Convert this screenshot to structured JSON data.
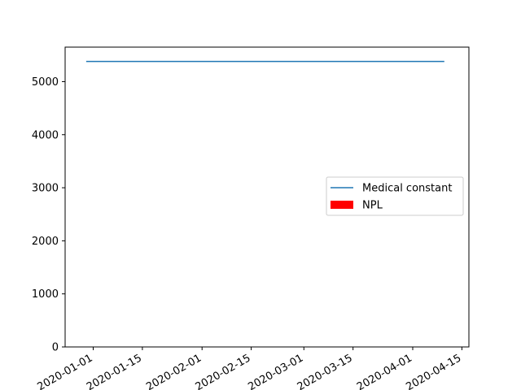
{
  "chart_data": {
    "type": "line",
    "title": "",
    "xlabel": "",
    "ylabel": "",
    "x_axis_type": "date",
    "xlim": [
      "2019-12-24",
      "2020-04-17"
    ],
    "ylim": [
      0,
      5650
    ],
    "x_ticks": [
      "2020-01-01",
      "2020-01-15",
      "2020-02-01",
      "2020-02-15",
      "2020-03-01",
      "2020-03-15",
      "2020-04-01",
      "2020-04-15"
    ],
    "y_ticks": [
      0,
      1000,
      2000,
      3000,
      4000,
      5000
    ],
    "grid": false,
    "legend_position": "center-right",
    "series": [
      {
        "name": "Medical constant",
        "kind": "line",
        "color": "#1f77b4",
        "x": [
          "2019-12-30",
          "2020-04-10"
        ],
        "values": [
          5380,
          5380
        ]
      },
      {
        "name": "NPL",
        "kind": "bar",
        "color": "#ff0000",
        "x": [],
        "values": []
      }
    ]
  }
}
